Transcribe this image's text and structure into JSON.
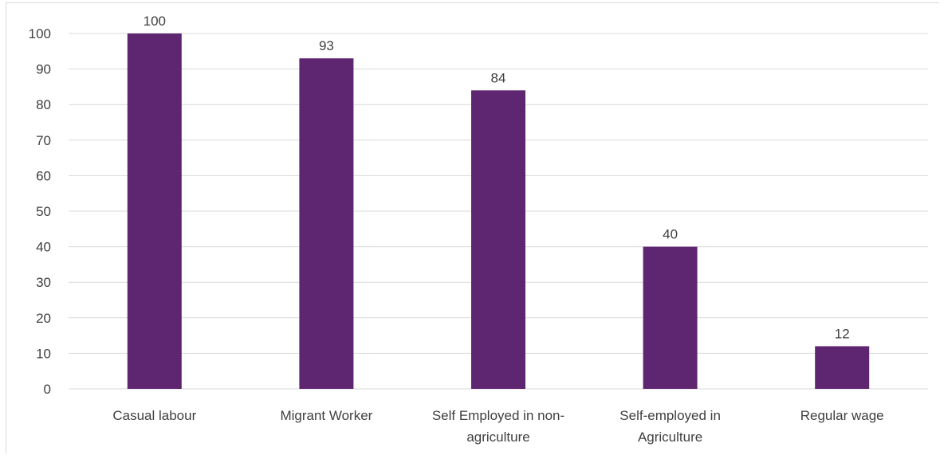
{
  "chart_data": {
    "type": "bar",
    "categories": [
      [
        "Casual labour"
      ],
      [
        "Migrant Worker"
      ],
      [
        "Self Employed in non-",
        "agriculture"
      ],
      [
        "Self-employed in",
        "Agriculture"
      ],
      [
        "Regular wage"
      ]
    ],
    "values": [
      100,
      93,
      84,
      40,
      12
    ],
    "data_labels": [
      "100",
      "93",
      "84",
      "40",
      "12"
    ],
    "y_ticks": [
      "0",
      "10",
      "20",
      "30",
      "40",
      "50",
      "60",
      "70",
      "80",
      "90",
      "100"
    ],
    "ylim": [
      0,
      100
    ],
    "grid": true,
    "bar_color": "#5e2570",
    "title": "",
    "xlabel": "",
    "ylabel": ""
  }
}
